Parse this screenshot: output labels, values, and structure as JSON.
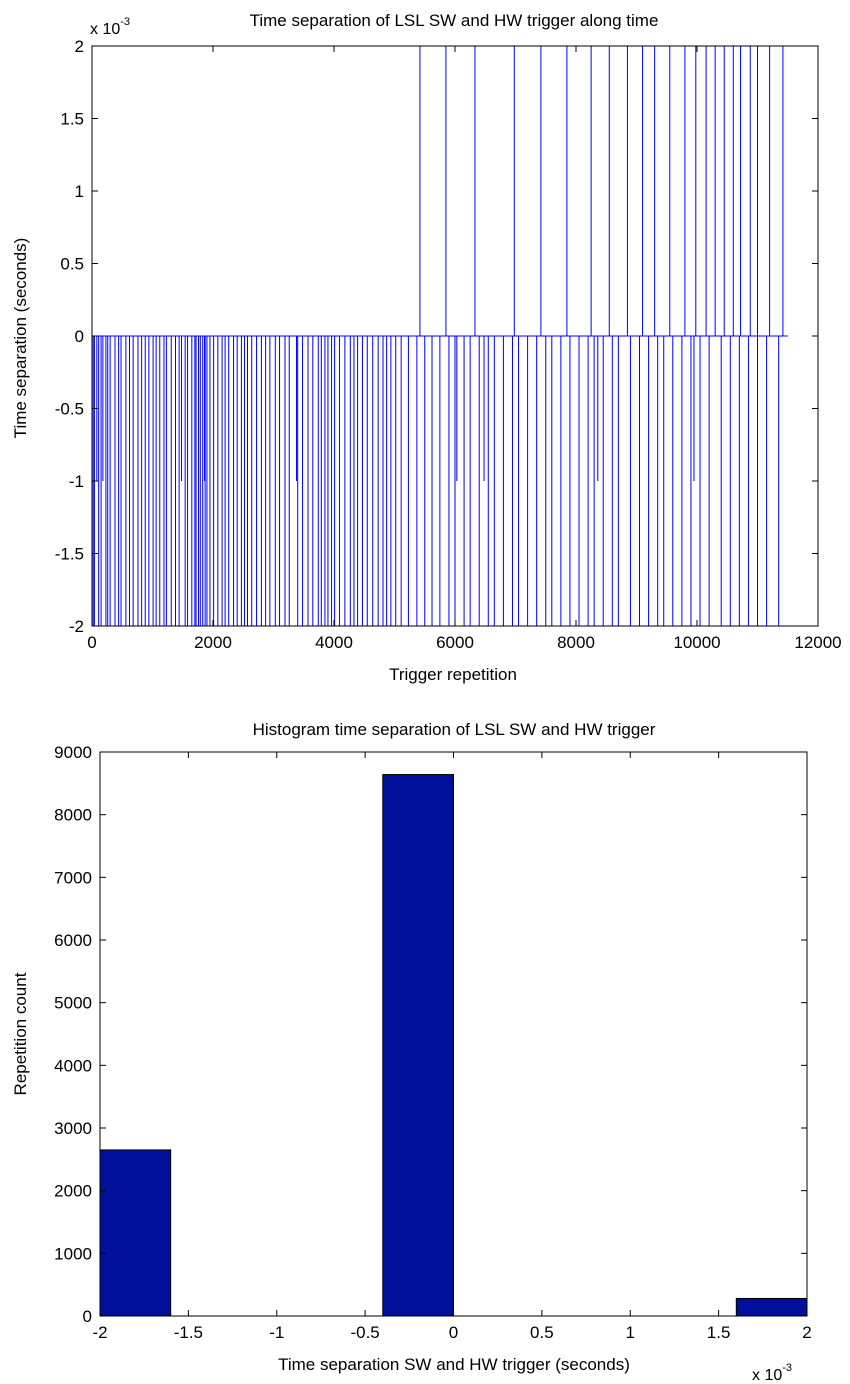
{
  "colors": {
    "line": "#0000ff",
    "bar_fill": "#00109a",
    "bar_edge": "#000000",
    "axes": "#000000",
    "background": "#ffffff"
  },
  "chart_data": [
    {
      "type": "line",
      "title": "Time separation of LSL SW and HW trigger along time",
      "xlabel": "Trigger repetition",
      "ylabel": "Time separation (seconds)",
      "y_exponent": {
        "base": "x 10",
        "power": "-3"
      },
      "xlim": [
        0,
        12000
      ],
      "ylim": [
        -2,
        2
      ],
      "xticks": [
        0,
        2000,
        4000,
        6000,
        8000,
        10000,
        12000
      ],
      "xtick_labels": [
        "0",
        "2000",
        "4000",
        "6000",
        "8000",
        "10000",
        "12000"
      ],
      "yticks": [
        2,
        1.5,
        1,
        0.5,
        0,
        -0.5,
        -1,
        -1.5,
        -2
      ],
      "ytick_labels": [
        "2",
        "1.5",
        "1",
        "0.5",
        "0",
        "-0.5",
        "-1",
        "-1.5",
        "-2"
      ],
      "grid": false,
      "baseline_x_range": [
        0,
        11500
      ],
      "negative_spikes_x": [
        20,
        40,
        110,
        150,
        230,
        260,
        300,
        380,
        440,
        480,
        560,
        620,
        680,
        760,
        820,
        880,
        940,
        1010,
        1060,
        1120,
        1190,
        1230,
        1310,
        1380,
        1440,
        1540,
        1580,
        1650,
        1700,
        1720,
        1760,
        1790,
        1830,
        1870,
        1900,
        1950,
        2010,
        2080,
        2150,
        2200,
        2260,
        2340,
        2400,
        2470,
        2520,
        2570,
        2640,
        2720,
        2800,
        2870,
        2940,
        3030,
        3100,
        3190,
        3260,
        3400,
        3480,
        3570,
        3650,
        3740,
        3790,
        3850,
        3900,
        3960,
        4010,
        4090,
        4180,
        4270,
        4330,
        4390,
        4470,
        4550,
        4640,
        4730,
        4810,
        4870,
        4940,
        5020,
        5110,
        5230,
        5370,
        5500,
        5620,
        5750,
        5900,
        6000,
        6150,
        6250,
        6400,
        6550,
        6650,
        6800,
        6950,
        7050,
        7200,
        7350,
        7500,
        7600,
        7750,
        7900,
        8050,
        8200,
        8300,
        8450,
        8600,
        8700,
        8900,
        9050,
        9200,
        9350,
        9450,
        9600,
        9750,
        9900,
        10050,
        10200,
        10400,
        10550,
        10700,
        10850,
        11000,
        11150,
        11350
      ],
      "negative_short_spikes_x": [
        80,
        180,
        1480,
        1860,
        3380,
        6030,
        6480,
        8360,
        9950
      ],
      "positive_spikes_x": [
        5420,
        5850,
        6330,
        6980,
        7420,
        7850,
        8250,
        8550,
        8850,
        9100,
        9300,
        9550,
        9800,
        9980,
        10150,
        10300,
        10450,
        10600,
        10720,
        10880,
        11000,
        11200,
        11420
      ]
    },
    {
      "type": "bar",
      "title": "Histogram time separation of LSL SW and HW trigger",
      "xlabel": "Time separation SW and HW trigger (seconds)",
      "ylabel": "Repetition count",
      "x_exponent": {
        "base": "x 10",
        "power": "-3"
      },
      "xlim": [
        -2,
        2
      ],
      "ylim": [
        0,
        9000
      ],
      "xticks": [
        -2,
        -1.5,
        -1,
        -0.5,
        0,
        0.5,
        1,
        1.5,
        2
      ],
      "xtick_labels": [
        "-2",
        "-1.5",
        "-1",
        "-0.5",
        "0",
        "0.5",
        "1",
        "1.5",
        "2"
      ],
      "yticks": [
        0,
        1000,
        2000,
        3000,
        4000,
        5000,
        6000,
        7000,
        8000,
        9000
      ],
      "ytick_labels": [
        "0",
        "1000",
        "2000",
        "3000",
        "4000",
        "5000",
        "6000",
        "7000",
        "8000",
        "9000"
      ],
      "grid": false,
      "bins": [
        {
          "x0": -2,
          "x1": -1.6,
          "value": 2650
        },
        {
          "x0": -1.6,
          "x1": -1.2,
          "value": 0
        },
        {
          "x0": -1.2,
          "x1": -0.8,
          "value": 0
        },
        {
          "x0": -0.8,
          "x1": -0.4,
          "value": 0
        },
        {
          "x0": -0.4,
          "x1": 0,
          "value": 8640
        },
        {
          "x0": 0,
          "x1": 0.4,
          "value": 0
        },
        {
          "x0": 0.4,
          "x1": 0.8,
          "value": 0
        },
        {
          "x0": 0.8,
          "x1": 1.2,
          "value": 0
        },
        {
          "x0": 1.2,
          "x1": 1.6,
          "value": 0
        },
        {
          "x0": 1.6,
          "x1": 2,
          "value": 280
        }
      ]
    }
  ]
}
